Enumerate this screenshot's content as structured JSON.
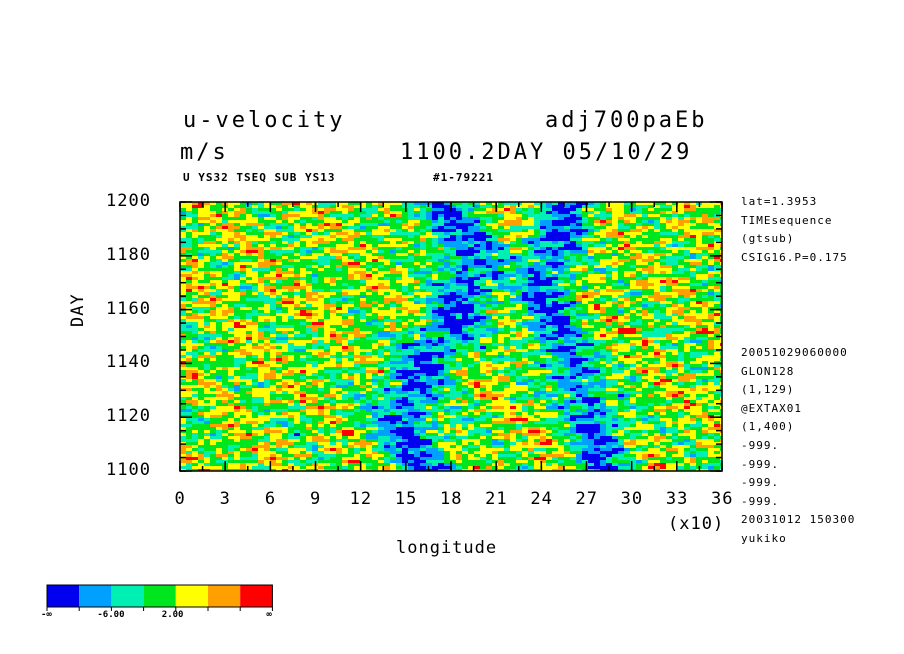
{
  "header": {
    "title_left": "u-velocity",
    "title_right": "adj700paEb",
    "units": "m/s",
    "time_stamp": "1100.2DAY 05/10/29",
    "subtitle_left": "U YS32 TSEQ SUB YS13",
    "subtitle_right": "#1-79221"
  },
  "side_info_top": [
    "lat=1.3953",
    "TIMEsequence",
    "(gtsub)",
    "CSIG16.P=0.175"
  ],
  "side_info_bottom": [
    "20051029060000",
    "GLON128",
    "(1,129)",
    "@EXTAX01",
    "(1,400)",
    "-999.",
    "-999.",
    "-999.",
    "-999.",
    "20031012 150300",
    "yukiko"
  ],
  "chart_data": {
    "type": "heatmap",
    "title": "u-velocity",
    "xlabel": "longitude",
    "x_multiplier_label": "(x10)",
    "ylabel": "DAY",
    "xlim": [
      0,
      36
    ],
    "ylim": [
      1100,
      1200
    ],
    "x_ticks": [
      "0",
      "3",
      "6",
      "9",
      "12",
      "15",
      "18",
      "21",
      "24",
      "27",
      "30",
      "33",
      "36"
    ],
    "y_ticks": [
      "1100",
      "1120",
      "1140",
      "1160",
      "1180",
      "1200"
    ],
    "colorbar": {
      "colors": [
        "#0000ee",
        "#00a0ff",
        "#00f0b4",
        "#00e61e",
        "#ffff00",
        "#ffa000",
        "#ff0000"
      ],
      "labels": [
        "-∞",
        "-6.00",
        "2.00",
        "∞"
      ]
    }
  }
}
